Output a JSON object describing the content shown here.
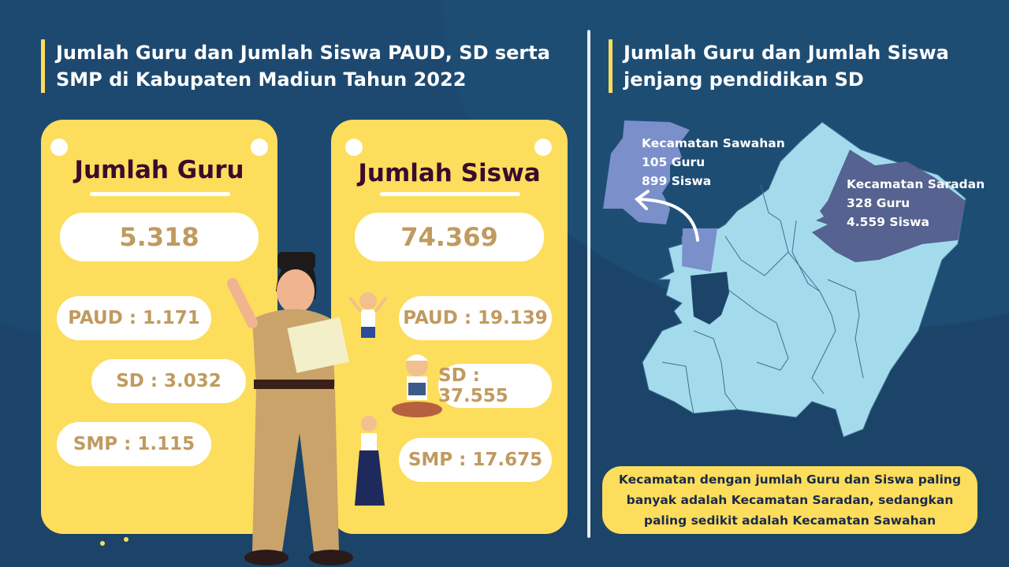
{
  "left_title": "Jumlah Guru dan Jumlah Siswa PAUD, SD serta SMP di Kabupaten Madiun Tahun 2022",
  "guru": {
    "title": "Jumlah Guru",
    "total": "5.318",
    "paud": "PAUD : 1.171",
    "sd": "SD : 3.032",
    "smp": "SMP : 1.115"
  },
  "siswa": {
    "title": "Jumlah Siswa",
    "total": "74.369",
    "paud": "PAUD : 19.139",
    "sd": "SD : 37.555",
    "smp": "SMP : 17.675"
  },
  "right_title": "Jumlah Guru dan Jumlah Siswa jenjang pendidikan SD",
  "map": {
    "sawahan": {
      "name": "Kecamatan Sawahan",
      "guru": "105 Guru",
      "siswa": "899 Siswa"
    },
    "saradan": {
      "name": "Kecamatan Saradan",
      "guru": "328 Guru",
      "siswa": "4.559 Siswa"
    }
  },
  "note": "Kecamatan dengan jumlah Guru dan Siswa paling banyak adalah Kecamatan Saradan, sedangkan paling sedikit adalah Kecamatan Sawahan",
  "colors": {
    "background": "#1b4468",
    "card": "#fddd5c",
    "number": "#c09a5f",
    "map": "#a3dbed",
    "sawahan": "#7b8fcb",
    "saradan": "#56628f"
  }
}
